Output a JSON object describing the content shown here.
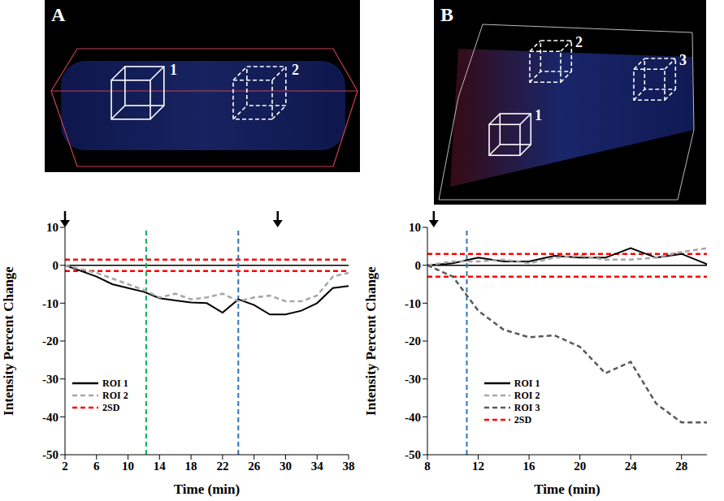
{
  "chart_data": [
    {
      "type": "line",
      "x": [
        2,
        4,
        6,
        8,
        10,
        12,
        14,
        16,
        18,
        20,
        22,
        24,
        26,
        28,
        30,
        32,
        34,
        36,
        38
      ],
      "xlim": [
        2,
        38
      ],
      "xticks": [
        2,
        6,
        10,
        14,
        18,
        22,
        26,
        30,
        34,
        38
      ],
      "ylim": [
        -50,
        10
      ],
      "yticks": [
        -50,
        -40,
        -30,
        -20,
        -10,
        0,
        10
      ],
      "x_label": "Time (min)",
      "y_label": "Intensity Percent Change",
      "grid": false,
      "legend": "lower left",
      "series": [
        {
          "name": "ROI 1",
          "color": "#000000",
          "line_style": "solid",
          "marker": "none",
          "values": [
            0,
            -1.5,
            -3,
            -5,
            -6,
            -7,
            -8.7,
            -9.3,
            -9.8,
            -10,
            -12.5,
            -9,
            -10.5,
            -13,
            -13,
            -12,
            -10,
            -6,
            -5.5
          ]
        },
        {
          "name": "ROI 2",
          "color": "#a6a6a6",
          "line_style": "dashed",
          "marker": "none",
          "values": [
            0,
            -1,
            -2,
            -3.5,
            -5,
            -6.5,
            -8.5,
            -7.5,
            -9,
            -8.5,
            -7.5,
            -9.5,
            -8.5,
            -8,
            -9.5,
            -9.5,
            -8,
            -3,
            -2
          ]
        }
      ],
      "threshold": {
        "name": "2SD",
        "color": "#ff0000",
        "line_style": "dashed",
        "values": [
          1.5,
          -1.5
        ]
      },
      "vertical_lines": [
        {
          "x": 12.3,
          "color": "#00b050"
        },
        {
          "x": 24,
          "color": "#2e75b6"
        }
      ],
      "arrows": [
        2,
        29
      ]
    },
    {
      "type": "line",
      "x": [
        8,
        10,
        12,
        14,
        16,
        18,
        20,
        22,
        24,
        26,
        28,
        30
      ],
      "xlim": [
        8,
        30
      ],
      "xticks": [
        8,
        12,
        16,
        20,
        24,
        28
      ],
      "ylim": [
        -50,
        10
      ],
      "yticks": [
        -50,
        -40,
        -30,
        -20,
        -10,
        0,
        10
      ],
      "x_label": "Time (min)",
      "y_label": "Intensity Percent Change",
      "grid": false,
      "legend": "lower center",
      "series": [
        {
          "name": "ROI 1",
          "color": "#000000",
          "line_style": "solid",
          "marker": "none",
          "values": [
            0,
            0.5,
            2,
            1,
            1,
            2.5,
            2,
            2,
            4.5,
            2,
            3,
            0.3
          ]
        },
        {
          "name": "ROI 2",
          "color": "#a6a6a6",
          "line_style": "dashed",
          "marker": "none",
          "values": [
            0,
            1,
            1,
            1.5,
            0.5,
            2,
            2.5,
            1.5,
            1.5,
            2,
            3.5,
            4.5
          ]
        },
        {
          "name": "ROI 3",
          "color": "#595959",
          "line_style": "dashed",
          "marker": "none",
          "values": [
            0,
            -3,
            -12,
            -17,
            -19,
            -18.5,
            -21.5,
            -28.5,
            -25.5,
            -36.5,
            -41.5,
            -41.5
          ]
        }
      ],
      "threshold": {
        "name": "2SD",
        "color": "#ff0000",
        "line_style": "dashed",
        "values": [
          3,
          -3
        ]
      },
      "vertical_lines": [
        {
          "x": 11.1,
          "color": "#2e75b6"
        }
      ],
      "arrows": [
        8.5
      ]
    }
  ],
  "images": [
    {
      "letter": "A",
      "box_labels": [
        "1",
        "2"
      ]
    },
    {
      "letter": "B",
      "box_labels": [
        "1",
        "2",
        "3"
      ]
    }
  ]
}
